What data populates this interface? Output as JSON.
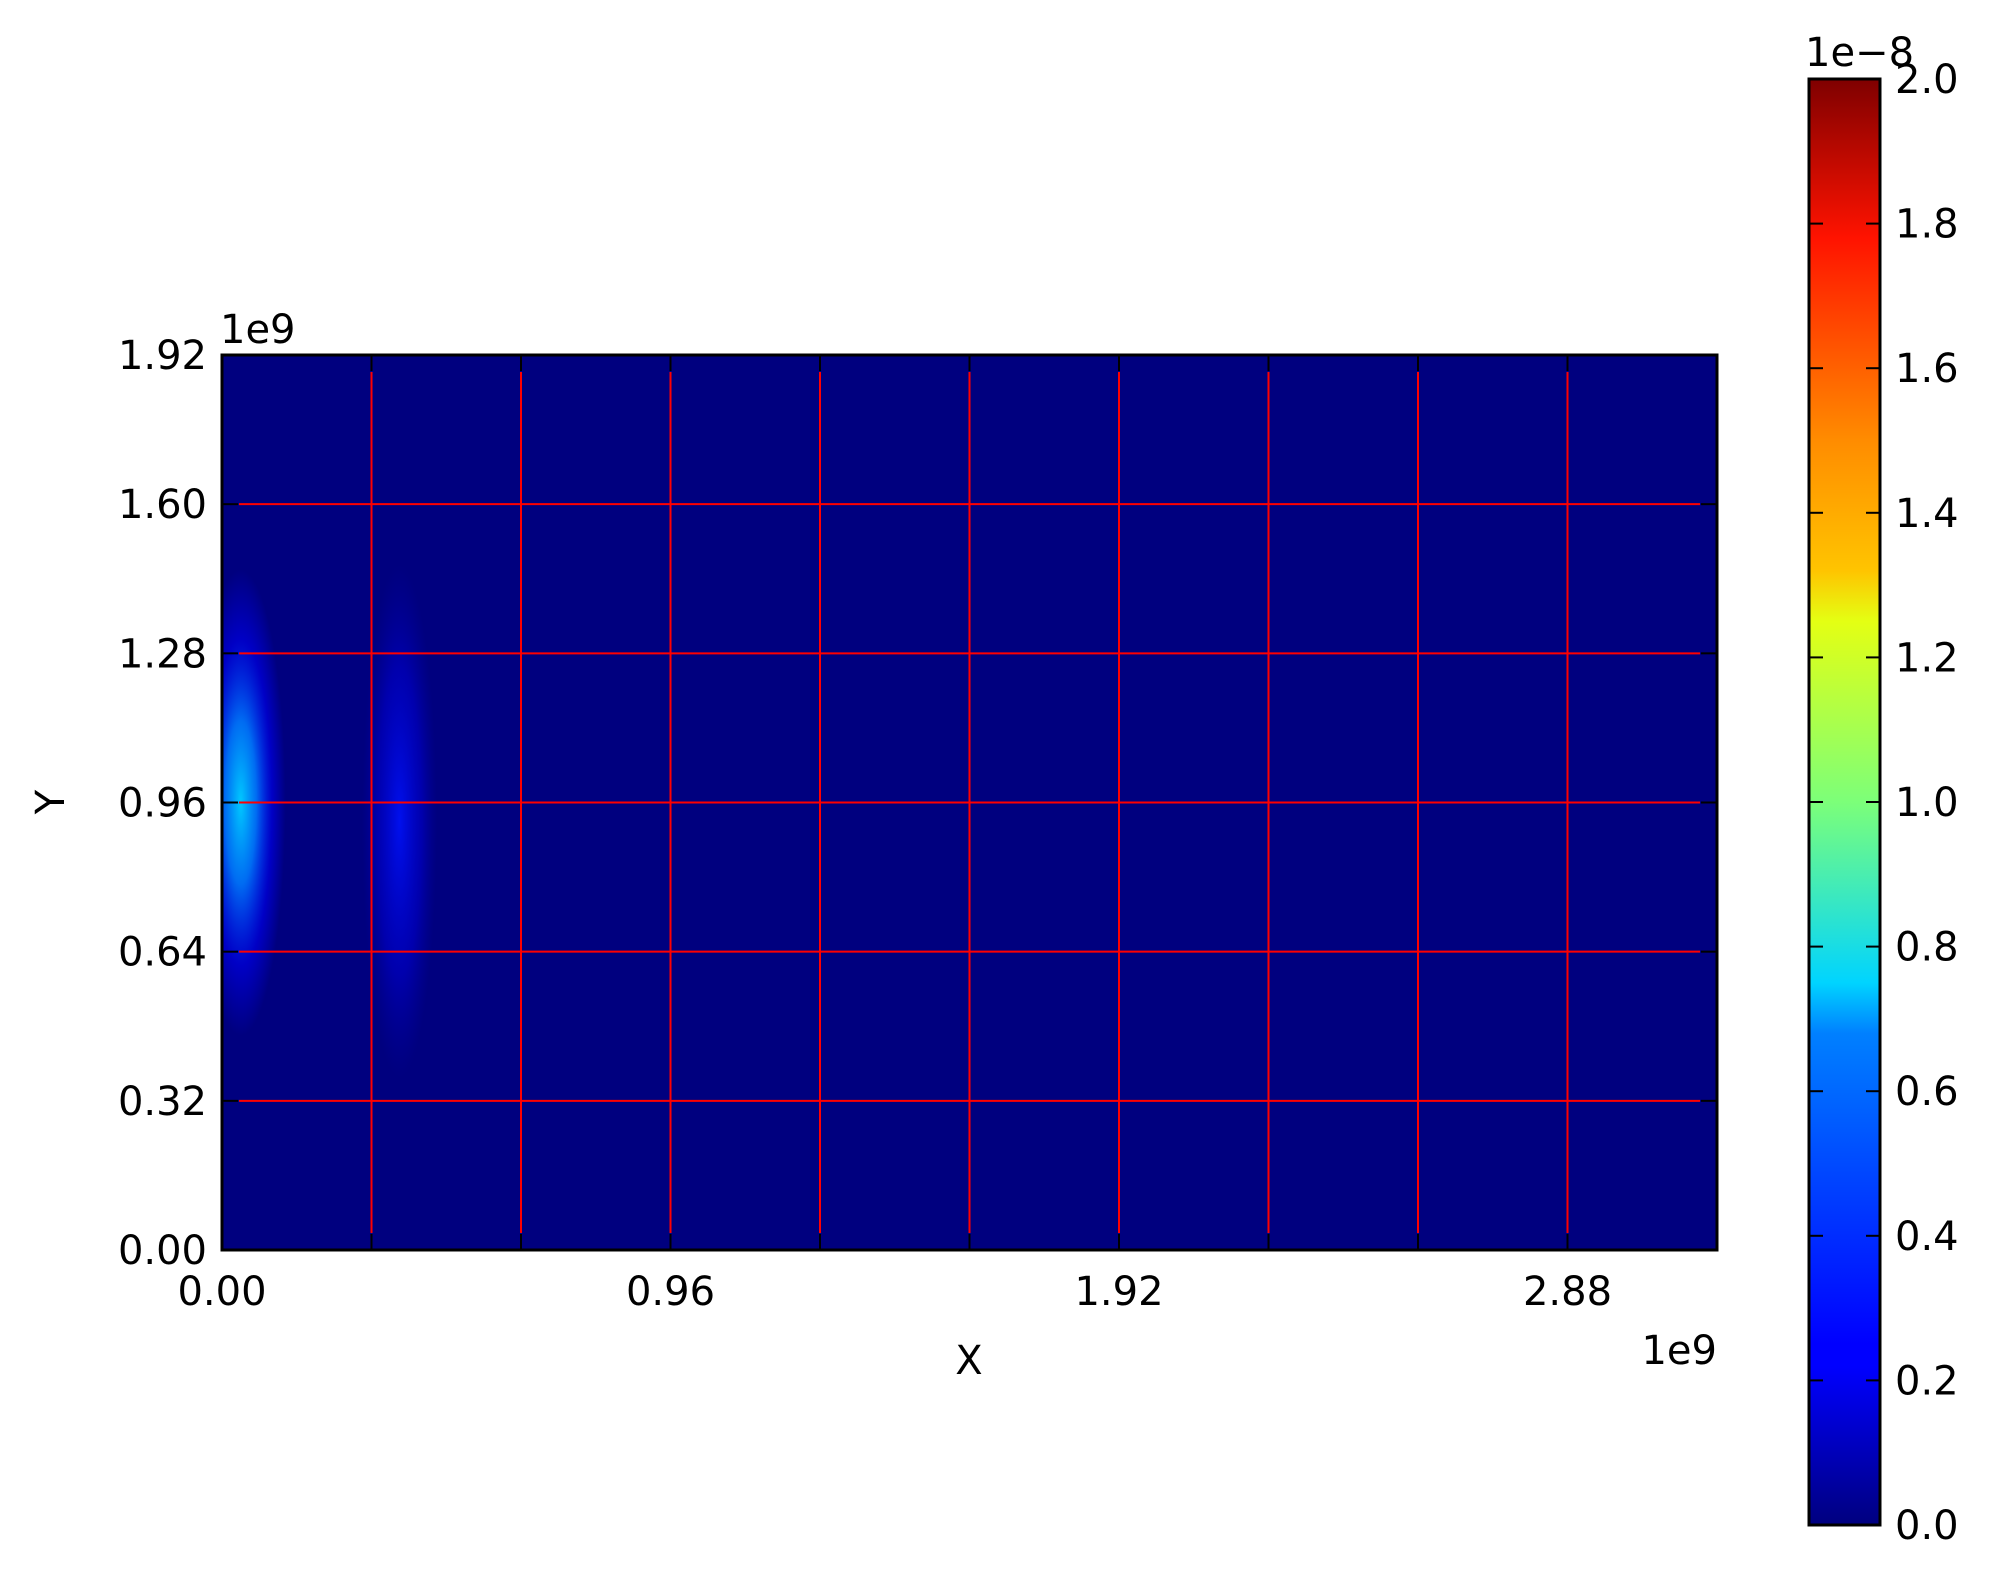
{
  "chart_data": {
    "type": "heatmap",
    "colormap": "jet",
    "xlabel": "X",
    "ylabel": "Y",
    "x_offset_text": "1e9",
    "y_offset_text": "1e9",
    "x_ticks": [
      {
        "value": 0.0,
        "label": "0.00"
      },
      {
        "value": 0.96,
        "label": "0.96"
      },
      {
        "value": 1.92,
        "label": "1.92"
      },
      {
        "value": 2.88,
        "label": "2.88"
      }
    ],
    "x_minor_ticks": [
      0.32,
      0.64,
      1.28,
      1.6,
      2.24,
      2.56
    ],
    "y_ticks": [
      {
        "value": 0.0,
        "label": "0.00"
      },
      {
        "value": 0.32,
        "label": "0.32"
      },
      {
        "value": 0.64,
        "label": "0.64"
      },
      {
        "value": 0.96,
        "label": "0.96"
      },
      {
        "value": 1.28,
        "label": "1.28"
      },
      {
        "value": 1.6,
        "label": "1.60"
      },
      {
        "value": 1.92,
        "label": "1.92"
      }
    ],
    "xlim": [
      0,
      3.2
    ],
    "ylim": [
      0,
      1.92
    ],
    "grid": true,
    "grid_color": "#ff0000",
    "background_color": "#00007f",
    "colorbar": {
      "range": [
        0.0,
        2.0
      ],
      "offset_text": "1e−8",
      "ticks": [
        {
          "value": 0.0,
          "label": "0.0"
        },
        {
          "value": 0.2,
          "label": "0.2"
        },
        {
          "value": 0.4,
          "label": "0.4"
        },
        {
          "value": 0.6,
          "label": "0.6"
        },
        {
          "value": 0.8,
          "label": "0.8"
        },
        {
          "value": 1.0,
          "label": "1.0"
        },
        {
          "value": 1.2,
          "label": "1.2"
        },
        {
          "value": 1.4,
          "label": "1.4"
        },
        {
          "value": 1.6,
          "label": "1.6"
        },
        {
          "value": 1.8,
          "label": "1.8"
        },
        {
          "value": 2.0,
          "label": "2.0"
        }
      ]
    },
    "features": [
      {
        "x_center": 0.04,
        "y_center": 0.96,
        "x_spread": 0.06,
        "y_spread": 0.5,
        "peak": 0.6
      },
      {
        "x_center": 0.38,
        "y_center": 0.92,
        "x_spread": 0.05,
        "y_spread": 0.55,
        "peak": 0.17
      }
    ]
  }
}
